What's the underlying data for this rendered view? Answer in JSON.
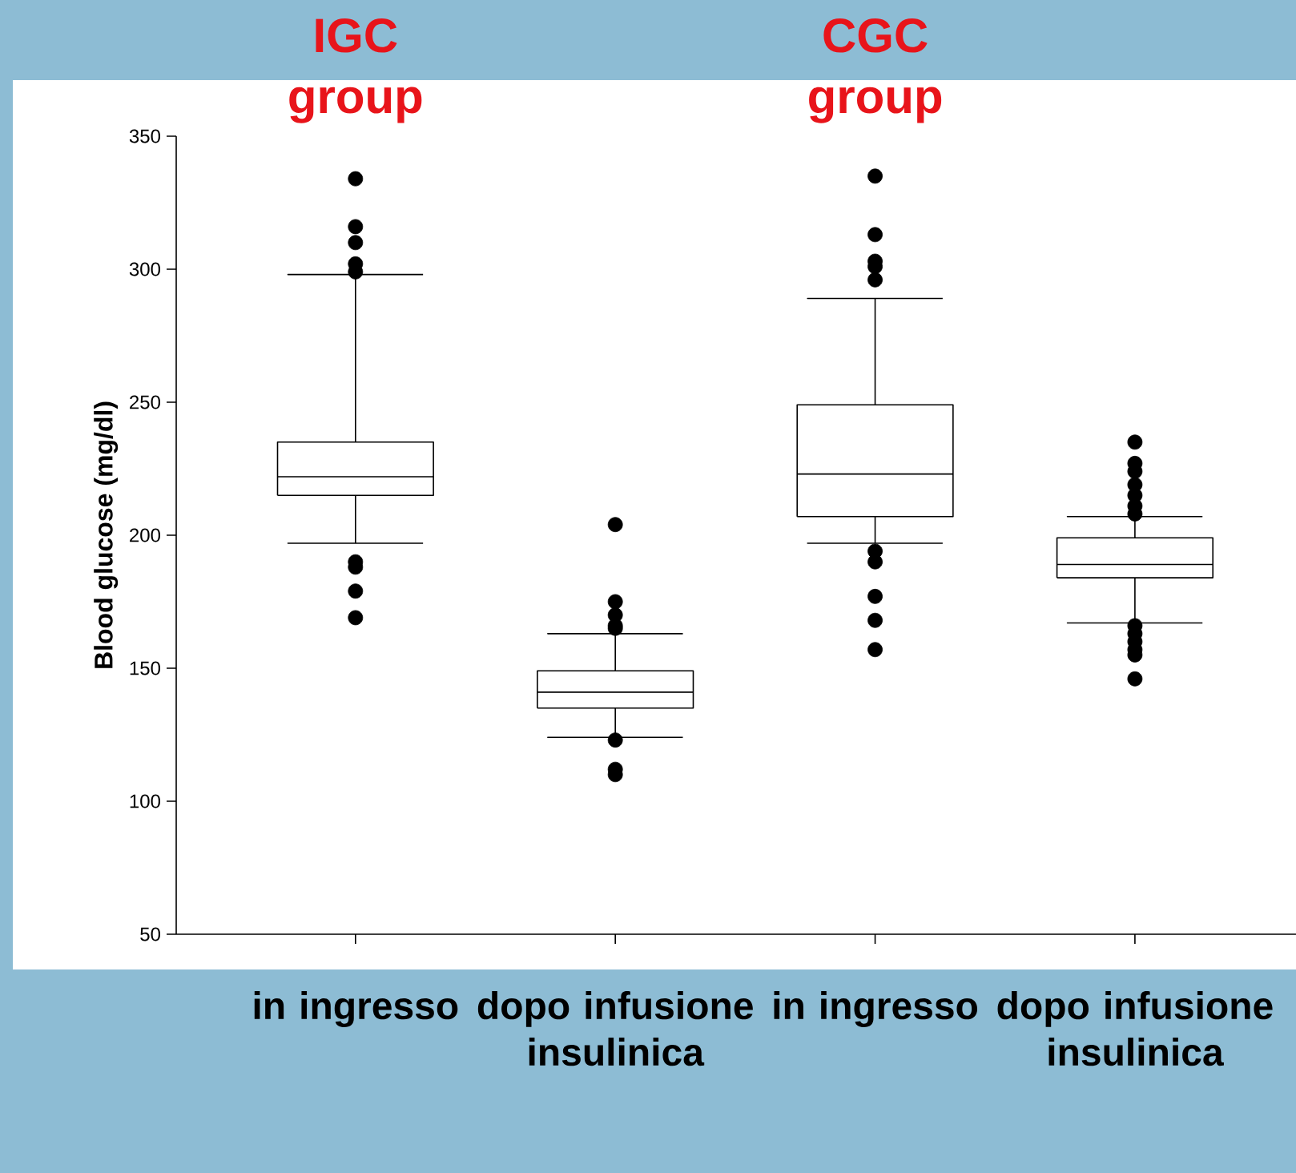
{
  "chart_data": {
    "type": "box",
    "categories": [
      "in ingresso",
      "dopo infusione insulinica",
      "in ingresso",
      "dopo infusione insulinica"
    ],
    "boxes": [
      {
        "low": 197,
        "q1": 215,
        "median": 222,
        "q3": 235,
        "high": 298,
        "outliers": [
          334,
          316,
          310,
          302,
          299,
          190,
          188,
          179,
          169
        ]
      },
      {
        "low": 124,
        "q1": 135,
        "median": 141,
        "q3": 149,
        "high": 163,
        "outliers": [
          204,
          175,
          170,
          166,
          165,
          123,
          112,
          110
        ]
      },
      {
        "low": 197,
        "q1": 207,
        "median": 223,
        "q3": 249,
        "high": 289,
        "outliers": [
          335,
          313,
          303,
          301,
          296,
          194,
          190,
          177,
          168,
          157
        ]
      },
      {
        "low": 167,
        "q1": 184,
        "median": 189,
        "q3": 199,
        "high": 207,
        "outliers": [
          235,
          227,
          224,
          219,
          215,
          211,
          208,
          166,
          163,
          160,
          157,
          155,
          146
        ]
      }
    ],
    "ylabel": "Blood glucose (mg/dl)",
    "ylim": [
      50,
      350
    ],
    "yticks": [
      50,
      100,
      150,
      200,
      250,
      300,
      350
    ],
    "annotations": [
      "IGC group",
      "CGC group"
    ],
    "marker": "circle"
  }
}
